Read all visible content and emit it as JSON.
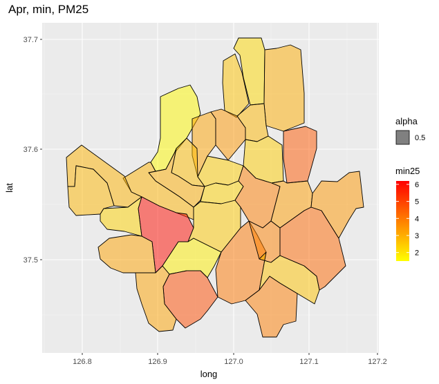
{
  "chart_data": {
    "type": "map",
    "title": "Apr, min, PM25",
    "xlabel": "long",
    "ylabel": "lat",
    "xlim": [
      126.75,
      127.2
    ],
    "ylim": [
      37.41,
      37.72
    ],
    "x_ticks": [
      "126.8",
      "126.9",
      "127.0",
      "127.1",
      "127.2"
    ],
    "y_ticks": [
      "37.5",
      "37.6",
      "37.7"
    ],
    "grid": true,
    "legend_placement": "right",
    "legend_alpha": {
      "title": "alpha",
      "key_color": "#808080",
      "label": "0.5"
    },
    "legend_fill": {
      "title": "min25",
      "min": 1.5,
      "max": 6.2,
      "labels": [
        "2",
        "3",
        "4",
        "5",
        "6"
      ],
      "low_color": "#ffff00",
      "high_color": "#ff0000"
    },
    "fill_opacity": 0.5,
    "regions": [
      {
        "id": "r1",
        "value": 2.2
      },
      {
        "id": "r2",
        "value": 2.6
      },
      {
        "id": "r3",
        "value": 3.0
      },
      {
        "id": "r4",
        "value": 1.6
      },
      {
        "id": "r5",
        "value": 4.6
      },
      {
        "id": "r6",
        "value": 3.2
      },
      {
        "id": "r7",
        "value": 3.4
      },
      {
        "id": "r8",
        "value": 2.8
      },
      {
        "id": "r9",
        "value": 2.4
      },
      {
        "id": "r10",
        "value": 2.7
      },
      {
        "id": "r11",
        "value": 2.4
      },
      {
        "id": "r12",
        "value": 3.0
      },
      {
        "id": "r13",
        "value": 2.9
      },
      {
        "id": "r14",
        "value": 2.3
      },
      {
        "id": "r15",
        "value": 3.9
      },
      {
        "id": "r16",
        "value": 3.3
      },
      {
        "id": "r17",
        "value": 3.4
      },
      {
        "id": "r18",
        "value": 2.9
      },
      {
        "id": "r19",
        "value": 2.8
      },
      {
        "id": "r20",
        "value": 6.0
      },
      {
        "id": "r21",
        "value": 2.5
      },
      {
        "id": "r22",
        "value": 2.3
      },
      {
        "id": "r23",
        "value": 1.8
      },
      {
        "id": "r24",
        "value": 4.0
      },
      {
        "id": "r25",
        "value": 4.8
      },
      {
        "id": "r26",
        "value": 3.8
      },
      {
        "id": "r27",
        "value": 2.6
      },
      {
        "id": "r28",
        "value": 3.9
      },
      {
        "id": "r29",
        "value": 4.3
      },
      {
        "id": "r30",
        "value": 3.2
      }
    ]
  }
}
